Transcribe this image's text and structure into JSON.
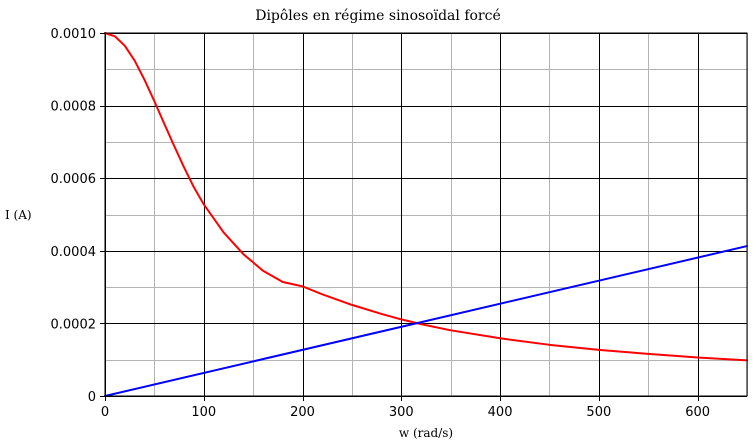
{
  "chart_data": {
    "type": "line",
    "title": "Dipôles en régime sinosoïdal forcé",
    "xlabel": "w (rad/s)",
    "ylabel": "I (A)",
    "xlim": [
      0,
      650
    ],
    "ylim": [
      0,
      0.001
    ],
    "grid": true,
    "x_major_ticks": [
      0,
      100,
      200,
      300,
      400,
      500,
      600
    ],
    "x_tick_labels": [
      "0",
      "100",
      "200",
      "300",
      "400",
      "500",
      "600"
    ],
    "x_minor_ticks": [
      50,
      150,
      250,
      350,
      450,
      550,
      650
    ],
    "y_major_ticks": [
      0,
      0.0002,
      0.0004,
      0.0006,
      0.0008,
      0.001
    ],
    "y_tick_labels": [
      "0",
      "0.0002",
      "0.0004",
      "0.0006",
      "0.0008",
      "0.0010"
    ],
    "y_minor_ticks": [
      0.0001,
      0.0003,
      0.0005,
      0.0007,
      0.0009
    ],
    "series": [
      {
        "color": "#ff0000",
        "x": [
          0,
          10,
          20,
          30,
          40,
          50,
          60,
          70,
          80,
          90,
          100,
          120,
          140,
          150,
          160,
          180,
          200,
          220,
          250,
          280,
          300,
          320,
          350,
          400,
          450,
          500,
          550,
          600,
          650
        ],
        "y": [
          0.001,
          0.000991,
          0.000965,
          0.000924,
          0.000871,
          0.000812,
          0.00075,
          0.000689,
          0.00063,
          0.000575,
          0.000528,
          0.000451,
          0.000391,
          0.000368,
          0.000345,
          0.000314,
          0.000302,
          0.00028,
          0.000251,
          0.000226,
          0.000211,
          0.000198,
          0.000181,
          0.000159,
          0.000141,
          0.000127,
          0.000116,
          0.000106,
          9.8e-05
        ]
      },
      {
        "color": "#0000ff",
        "x": [
          0,
          650
        ],
        "y": [
          0,
          0.000413
        ]
      }
    ]
  }
}
